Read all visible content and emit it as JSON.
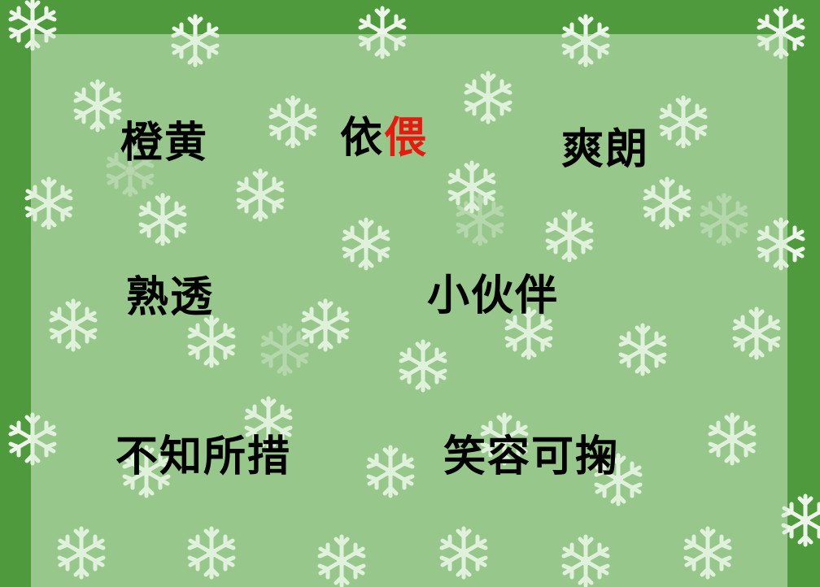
{
  "colors": {
    "border_green": "#4f9a3c",
    "panel_tint": "#d6ecce",
    "snow": "#ffffff",
    "word_text": "#000000",
    "highlight": "#e8190f"
  },
  "words": {
    "row1": {
      "w1": "橙黄",
      "w2_part1": "依",
      "w2_part2": "偎",
      "w3": "爽朗"
    },
    "row2": {
      "w1": "熟透",
      "w2": "小伙伴"
    },
    "row3": {
      "w1": "不知所措",
      "w2": "笑容可掬"
    }
  },
  "icons": {
    "background_pattern": "snowflake-icon"
  }
}
